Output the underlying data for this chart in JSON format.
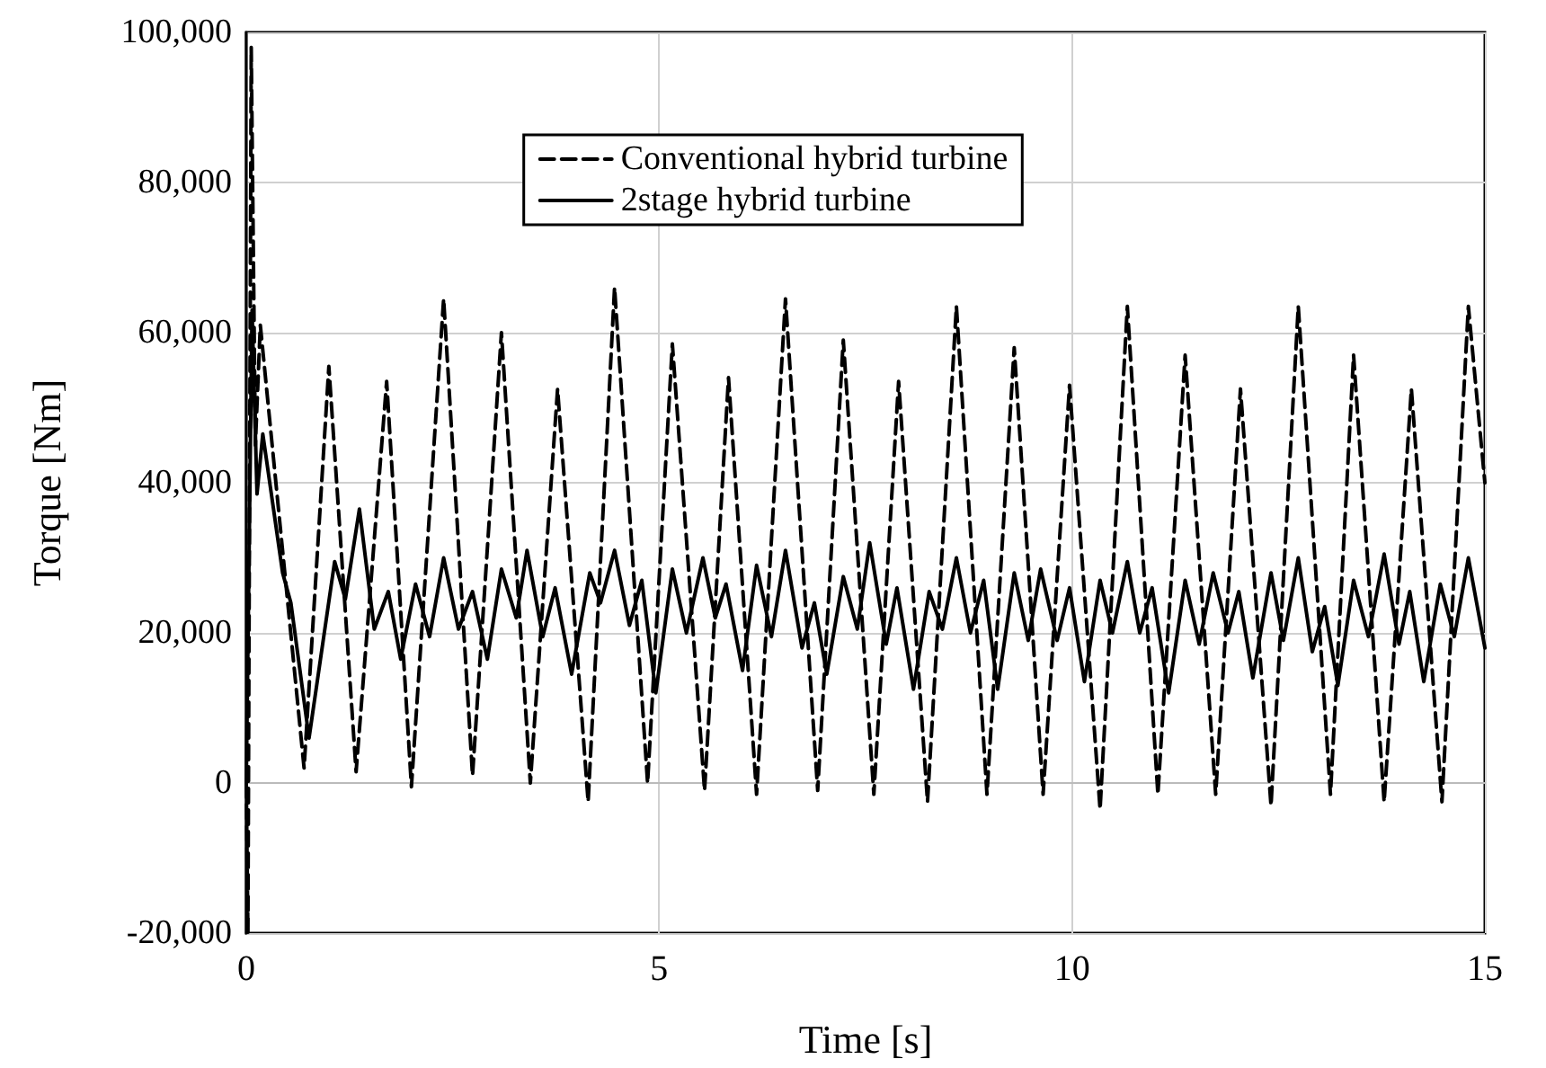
{
  "chart_data": {
    "type": "line",
    "xlabel": "Time [s]",
    "ylabel": "Torque [Nm]",
    "xlim": [
      0,
      15
    ],
    "xticks": [
      0,
      5,
      10,
      15
    ],
    "ylim": [
      -20000,
      100000
    ],
    "yticks": [
      {
        "value": -20000,
        "label": "-20,000"
      },
      0,
      {
        "value": 20000,
        "label": "20,000"
      },
      {
        "value": 40000,
        "label": "40,000"
      },
      {
        "value": 60000,
        "label": "60,000"
      },
      {
        "value": 80000,
        "label": "80,000"
      },
      {
        "value": 100000,
        "label": "100,000"
      }
    ],
    "grid": true,
    "legend": "top",
    "marker": "none",
    "series": [
      {
        "name": "Conventional hybrid turbine",
        "color": "#000000",
        "line_style": "dashed",
        "x": [
          0,
          0.02,
          0.06,
          0.11,
          0.17,
          0.7,
          1.0,
          1.33,
          1.7,
          2.0,
          2.39,
          2.74,
          3.09,
          3.44,
          3.77,
          4.14,
          4.46,
          4.86,
          5.16,
          5.55,
          5.84,
          6.18,
          6.53,
          6.92,
          7.23,
          7.6,
          7.9,
          8.25,
          8.6,
          8.97,
          9.3,
          9.65,
          9.97,
          10.34,
          10.67,
          11.04,
          11.37,
          11.74,
          12.04,
          12.41,
          12.74,
          13.13,
          13.41,
          13.78,
          14.11,
          14.48,
          14.8,
          15
        ],
        "values": [
          0,
          -20000,
          98000,
          45000,
          61000,
          2000,
          55500,
          1500,
          53500,
          -500,
          64500,
          1000,
          60000,
          0,
          52500,
          -2500,
          66000,
          0,
          58500,
          -1000,
          54000,
          -1500,
          64500,
          -1000,
          59000,
          -1500,
          53500,
          -2500,
          63500,
          -1500,
          58000,
          -1500,
          53000,
          -3500,
          63500,
          -1500,
          57000,
          -1500,
          52500,
          -3000,
          63500,
          -1500,
          57000,
          -2500,
          52500,
          -2500,
          63500,
          40000
        ]
      },
      {
        "name": "2stage hybrid turbine",
        "color": "#000000",
        "line_style": "solid",
        "x": [
          0,
          0.07,
          0.13,
          0.2,
          0.44,
          0.54,
          0.76,
          1.07,
          1.2,
          1.37,
          1.55,
          1.72,
          1.87,
          2.05,
          2.22,
          2.39,
          2.57,
          2.74,
          2.92,
          3.09,
          3.27,
          3.4,
          3.59,
          3.74,
          3.94,
          4.16,
          4.29,
          4.46,
          4.64,
          4.79,
          4.96,
          5.16,
          5.33,
          5.53,
          5.68,
          5.81,
          6.01,
          6.18,
          6.36,
          6.53,
          6.73,
          6.88,
          7.03,
          7.23,
          7.4,
          7.55,
          7.75,
          7.88,
          8.08,
          8.27,
          8.43,
          8.6,
          8.77,
          8.93,
          9.1,
          9.3,
          9.47,
          9.62,
          9.82,
          9.97,
          10.15,
          10.34,
          10.49,
          10.67,
          10.82,
          10.97,
          11.17,
          11.37,
          11.54,
          11.71,
          11.89,
          12.02,
          12.19,
          12.41,
          12.56,
          12.74,
          12.91,
          13.06,
          13.22,
          13.41,
          13.59,
          13.78,
          13.96,
          14.09,
          14.26,
          14.46,
          14.63,
          14.8,
          15
        ],
        "values": [
          0,
          63000,
          38500,
          46500,
          28000,
          24000,
          6000,
          29500,
          24500,
          36500,
          20500,
          25500,
          16500,
          26500,
          19500,
          30000,
          20500,
          25500,
          16500,
          28500,
          22000,
          31000,
          19500,
          26000,
          14500,
          28000,
          24000,
          31000,
          21000,
          27000,
          12000,
          28500,
          20000,
          30000,
          22000,
          26500,
          15000,
          29000,
          19500,
          31000,
          18000,
          24000,
          14500,
          27500,
          20500,
          32000,
          18500,
          26000,
          12500,
          25500,
          20500,
          30000,
          20000,
          27000,
          12500,
          28000,
          19000,
          28500,
          19000,
          26000,
          13500,
          27000,
          20000,
          29500,
          20000,
          26000,
          12000,
          27000,
          18500,
          28000,
          20000,
          25500,
          14000,
          28000,
          19000,
          30000,
          17500,
          23500,
          13000,
          27000,
          19500,
          30500,
          18500,
          25500,
          13500,
          26500,
          19500,
          30000,
          18000
        ]
      }
    ]
  }
}
